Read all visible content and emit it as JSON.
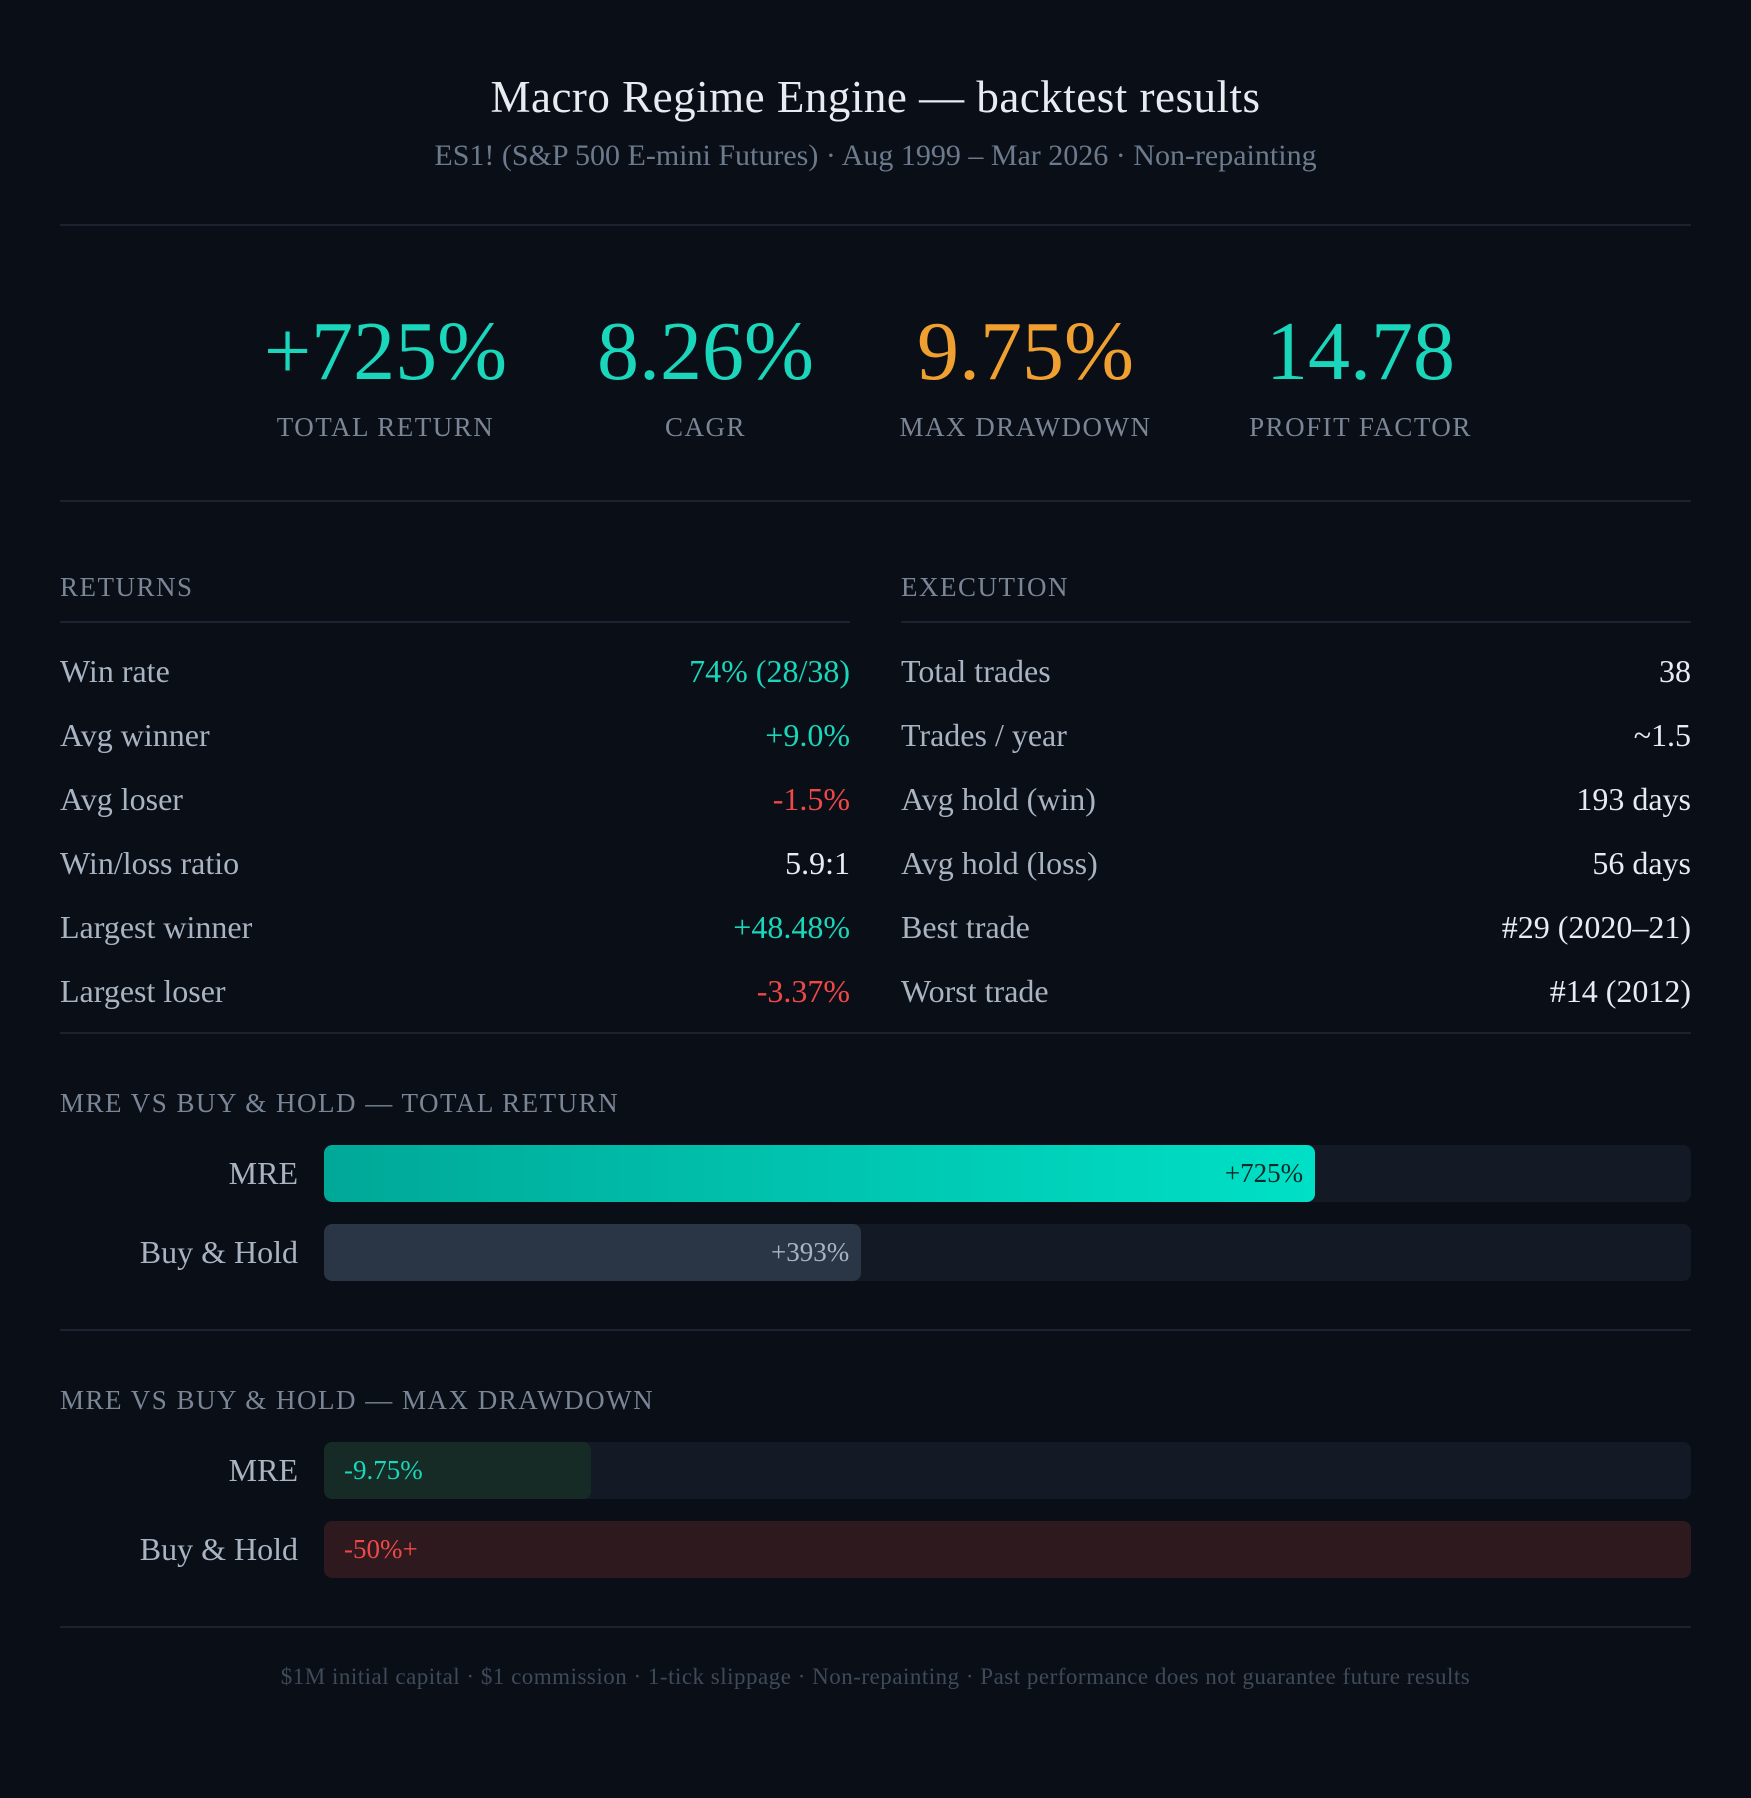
{
  "header": {
    "title": "Macro Regime Engine — backtest results",
    "subtitle": "ES1! (S&P 500 E-mini Futures) · Aug 1999 – Mar 2026 · Non-repainting"
  },
  "kpis": [
    {
      "value": "+725%",
      "label": "TOTAL RETURN",
      "color": "#1ad6bb"
    },
    {
      "value": "8.26%",
      "label": "CAGR",
      "color": "#1ad6bb"
    },
    {
      "value": "9.75%",
      "label": "MAX DRAWDOWN",
      "color": "#f0a030"
    },
    {
      "value": "14.78",
      "label": "PROFIT FACTOR",
      "color": "#1ad6bb"
    }
  ],
  "returns": {
    "title": "RETURNS",
    "rows": [
      {
        "label": "Win rate",
        "value": "74% (28/38)",
        "tone": "pos"
      },
      {
        "label": "Avg winner",
        "value": "+9.0%",
        "tone": "pos"
      },
      {
        "label": "Avg loser",
        "value": "-1.5%",
        "tone": "neg"
      },
      {
        "label": "Win/loss ratio",
        "value": "5.9:1",
        "tone": ""
      },
      {
        "label": "Largest winner",
        "value": "+48.48%",
        "tone": "pos"
      },
      {
        "label": "Largest loser",
        "value": "-3.37%",
        "tone": "neg"
      }
    ]
  },
  "execution": {
    "title": "EXECUTION",
    "rows": [
      {
        "label": "Total trades",
        "value": "38",
        "tone": ""
      },
      {
        "label": "Trades / year",
        "value": "~1.5",
        "tone": ""
      },
      {
        "label": "Avg hold (win)",
        "value": "193 days",
        "tone": ""
      },
      {
        "label": "Avg hold (loss)",
        "value": "56 days",
        "tone": ""
      },
      {
        "label": "Best trade",
        "value": "#29 (2020–21)",
        "tone": ""
      },
      {
        "label": "Worst trade",
        "value": "#14 (2012)",
        "tone": ""
      }
    ]
  },
  "chart_data": [
    {
      "type": "bar",
      "title": "MRE VS BUY & HOLD — TOTAL RETURN",
      "categories": [
        "MRE",
        "Buy & Hold"
      ],
      "values": [
        725,
        393
      ],
      "labels": [
        "+725%",
        "+393%"
      ],
      "xlim": [
        0,
        1000
      ],
      "colors": [
        "#1ad6bb",
        "#2a3646"
      ],
      "label_colors": [
        "#0a2a26",
        "#a9b4c2"
      ]
    },
    {
      "type": "bar",
      "title": "MRE VS BUY & HOLD — MAX DRAWDOWN",
      "categories": [
        "MRE",
        "Buy & Hold"
      ],
      "values": [
        9.75,
        50
      ],
      "labels": [
        "-9.75%",
        "-50%+"
      ],
      "xlim": [
        0,
        50
      ],
      "colors": [
        "#162b26",
        "#2e1a1e"
      ],
      "label_colors": [
        "#1ad6bb",
        "#f04848"
      ]
    }
  ],
  "footer": {
    "text": "$1M initial capital · $1 commission · 1-tick slippage · Non-repainting · Past performance does not guarantee future results"
  }
}
